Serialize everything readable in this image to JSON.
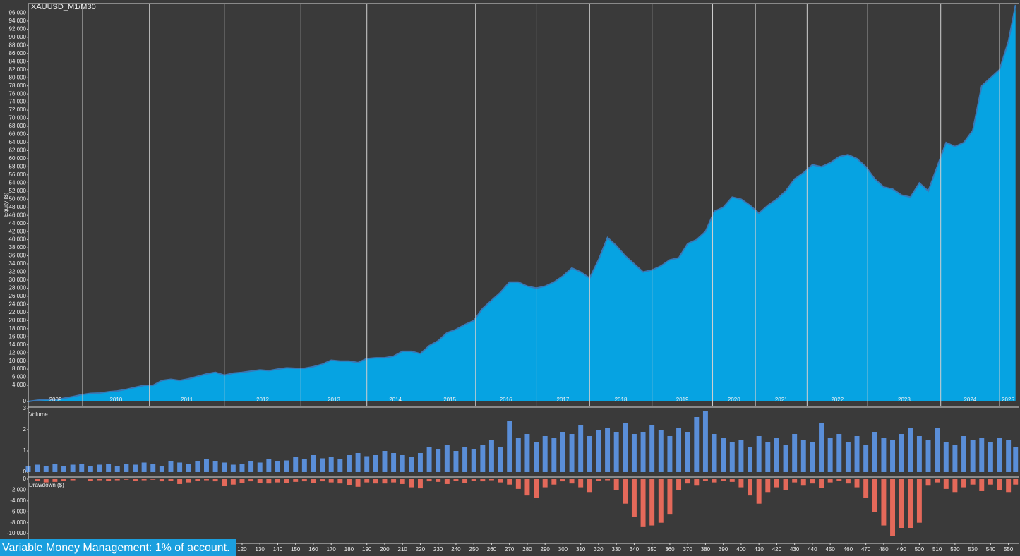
{
  "chart_data": [
    {
      "type": "area",
      "title": "XAUUSD_M1/M30",
      "ylabel": "Equity ($)",
      "color": "#06a3e2",
      "line_color": "#3a78b5",
      "x": [
        0,
        5,
        10,
        15,
        20,
        25,
        30,
        35,
        40,
        45,
        50,
        55,
        60,
        65,
        70,
        75,
        80,
        85,
        90,
        95,
        100,
        105,
        110,
        115,
        120,
        125,
        130,
        135,
        140,
        145,
        150,
        155,
        160,
        165,
        170,
        175,
        180,
        185,
        190,
        195,
        200,
        205,
        210,
        215,
        220,
        225,
        230,
        235,
        240,
        245,
        250,
        255,
        260,
        265,
        270,
        275,
        280,
        285,
        290,
        295,
        300,
        305,
        310,
        315,
        320,
        325,
        330,
        335,
        340,
        345,
        350,
        355,
        360,
        365,
        370,
        375,
        380,
        385,
        390,
        395,
        400,
        405,
        410,
        415,
        420,
        425,
        430,
        435,
        440,
        445,
        450,
        455,
        460,
        465,
        470,
        475,
        480,
        485,
        490,
        495,
        500,
        505,
        510,
        515,
        520,
        525,
        530,
        535,
        540,
        545,
        550,
        554
      ],
      "values": [
        0,
        300,
        500,
        400,
        800,
        1200,
        1700,
        2000,
        2100,
        2400,
        2600,
        3000,
        3500,
        4000,
        4000,
        5200,
        5500,
        5200,
        5600,
        6200,
        6800,
        7200,
        6500,
        7000,
        7200,
        7500,
        7800,
        7600,
        8000,
        8300,
        8200,
        8200,
        8600,
        9200,
        10200,
        10000,
        10000,
        9600,
        10600,
        10800,
        10800,
        11200,
        12400,
        12400,
        11800,
        13800,
        15000,
        17000,
        17800,
        19000,
        20000,
        23000,
        25000,
        27000,
        29500,
        29500,
        28500,
        28000,
        28500,
        29500,
        31000,
        33000,
        32000,
        30500,
        35000,
        40500,
        38500,
        36000,
        34000,
        32000,
        32500,
        33500,
        35000,
        35500,
        39000,
        40000,
        42000,
        47000,
        48000,
        50500,
        50000,
        48500,
        46500,
        48500,
        50000,
        52000,
        55000,
        56500,
        58500,
        58000,
        59000,
        60500,
        61000,
        60000,
        58000,
        55000,
        53000,
        52500,
        51000,
        50500,
        54000,
        52000,
        58000,
        64000,
        63000,
        64000,
        67000,
        78000,
        80000,
        82000,
        89000,
        98000
      ],
      "xlim": [
        0,
        554.5
      ],
      "ylim": [
        0,
        98000
      ],
      "yticks": [
        0,
        {
          "value": 4000,
          "label": "4,000"
        },
        {
          "value": 6000,
          "label": "6,000"
        },
        {
          "value": 8000,
          "label": "8,000"
        },
        {
          "value": 10000,
          "label": "10,000"
        },
        {
          "value": 12000,
          "label": "12,000"
        },
        {
          "value": 14000,
          "label": "14,000"
        },
        {
          "value": 16000,
          "label": "16,000"
        },
        {
          "value": 18000,
          "label": "18,000"
        },
        {
          "value": 20000,
          "label": "20,000"
        },
        {
          "value": 22000,
          "label": "22,000"
        },
        {
          "value": 24000,
          "label": "24,000"
        },
        {
          "value": 26000,
          "label": "26,000"
        },
        {
          "value": 28000,
          "label": "28,000"
        },
        {
          "value": 30000,
          "label": "30,000"
        },
        {
          "value": 32000,
          "label": "32,000"
        },
        {
          "value": 34000,
          "label": "34,000"
        },
        {
          "value": 36000,
          "label": "36,000"
        },
        {
          "value": 38000,
          "label": "38,000"
        },
        {
          "value": 40000,
          "label": "40,000"
        },
        {
          "value": 42000,
          "label": "42,000"
        },
        {
          "value": 44000,
          "label": "44,000"
        },
        {
          "value": 46000,
          "label": "46,000"
        },
        {
          "value": 48000,
          "label": "48,000"
        },
        {
          "value": 50000,
          "label": "50,000"
        },
        {
          "value": 52000,
          "label": "52,000"
        },
        {
          "value": 54000,
          "label": "54,000"
        },
        {
          "value": 56000,
          "label": "56,000"
        },
        {
          "value": 58000,
          "label": "58,000"
        },
        {
          "value": 60000,
          "label": "60,000"
        },
        {
          "value": 62000,
          "label": "62,000"
        },
        {
          "value": 64000,
          "label": "64,000"
        },
        {
          "value": 66000,
          "label": "66,000"
        },
        {
          "value": 68000,
          "label": "68,000"
        },
        {
          "value": 70000,
          "label": "70,000"
        },
        {
          "value": 72000,
          "label": "72,000"
        },
        {
          "value": 74000,
          "label": "74,000"
        },
        {
          "value": 76000,
          "label": "76,000"
        },
        {
          "value": 78000,
          "label": "78,000"
        },
        {
          "value": 80000,
          "label": "80,000"
        },
        {
          "value": 82000,
          "label": "82,000"
        },
        {
          "value": 84000,
          "label": "84,000"
        },
        {
          "value": 86000,
          "label": "86,000"
        },
        {
          "value": 88000,
          "label": "88,000"
        },
        {
          "value": 90000,
          "label": "90,000"
        },
        {
          "value": 92000,
          "label": "92,000"
        },
        {
          "value": 94000,
          "label": "94,000"
        },
        {
          "value": 96000,
          "label": "96,000"
        }
      ],
      "year_lines": [
        30.5,
        68,
        110,
        153,
        190,
        222,
        251,
        285,
        315,
        350,
        384,
        408,
        437,
        471,
        512,
        545
      ],
      "years": [
        "2009",
        "2010",
        "2011",
        "2012",
        "2013",
        "2014",
        "2015",
        "2016",
        "2017",
        "2018",
        "2019",
        "2020",
        "2021",
        "2022",
        "2023",
        "2024",
        "2025"
      ]
    },
    {
      "type": "bar",
      "ylabel": "Volume",
      "color": "#5a8ed8",
      "x": [
        0,
        5,
        10,
        15,
        20,
        25,
        30,
        35,
        40,
        45,
        50,
        55,
        60,
        65,
        70,
        75,
        80,
        85,
        90,
        95,
        100,
        105,
        110,
        115,
        120,
        125,
        130,
        135,
        140,
        145,
        150,
        155,
        160,
        165,
        170,
        175,
        180,
        185,
        190,
        195,
        200,
        205,
        210,
        215,
        220,
        225,
        230,
        235,
        240,
        245,
        250,
        255,
        260,
        265,
        270,
        275,
        280,
        285,
        290,
        295,
        300,
        305,
        310,
        315,
        320,
        325,
        330,
        335,
        340,
        345,
        350,
        355,
        360,
        365,
        370,
        375,
        380,
        385,
        390,
        395,
        400,
        405,
        410,
        415,
        420,
        425,
        430,
        435,
        440,
        445,
        450,
        455,
        460,
        465,
        470,
        475,
        480,
        485,
        490,
        495,
        500,
        505,
        510,
        515,
        520,
        525,
        530,
        535,
        540,
        545,
        550,
        554
      ],
      "values": [
        0.3,
        0.35,
        0.3,
        0.4,
        0.3,
        0.35,
        0.4,
        0.3,
        0.35,
        0.4,
        0.3,
        0.4,
        0.35,
        0.45,
        0.4,
        0.3,
        0.5,
        0.45,
        0.4,
        0.5,
        0.6,
        0.5,
        0.45,
        0.35,
        0.4,
        0.5,
        0.45,
        0.6,
        0.5,
        0.55,
        0.7,
        0.6,
        0.8,
        0.65,
        0.7,
        0.6,
        0.8,
        0.9,
        0.75,
        0.8,
        1.0,
        0.9,
        0.8,
        0.7,
        0.9,
        1.2,
        1.1,
        1.3,
        1.0,
        1.2,
        1.1,
        1.3,
        1.5,
        1.2,
        2.4,
        1.6,
        1.8,
        1.4,
        1.7,
        1.6,
        1.9,
        1.8,
        2.2,
        1.7,
        2.0,
        2.1,
        1.9,
        2.3,
        1.8,
        1.9,
        2.2,
        2.0,
        1.7,
        2.1,
        1.9,
        2.6,
        2.9,
        1.8,
        1.6,
        1.4,
        1.5,
        1.2,
        1.7,
        1.4,
        1.6,
        1.3,
        1.8,
        1.5,
        1.4,
        2.3,
        1.6,
        1.8,
        1.4,
        1.7,
        1.3,
        1.9,
        1.6,
        1.5,
        1.8,
        2.1,
        1.7,
        1.5,
        2.1,
        1.4,
        1.3,
        1.7,
        1.5,
        1.6,
        1.4,
        1.6,
        1.5,
        1.2
      ],
      "xlim": [
        0,
        554.5
      ],
      "ylim": [
        0,
        3
      ],
      "yticks": [
        0,
        1,
        2,
        3
      ]
    },
    {
      "type": "bar",
      "ylabel": "Drawdown ($)",
      "color": "#e4695a",
      "x": [
        0,
        5,
        10,
        15,
        20,
        25,
        30,
        35,
        40,
        45,
        50,
        55,
        60,
        65,
        70,
        75,
        80,
        85,
        90,
        95,
        100,
        105,
        110,
        115,
        120,
        125,
        130,
        135,
        140,
        145,
        150,
        155,
        160,
        165,
        170,
        175,
        180,
        185,
        190,
        195,
        200,
        205,
        210,
        215,
        220,
        225,
        230,
        235,
        240,
        245,
        250,
        255,
        260,
        265,
        270,
        275,
        280,
        285,
        290,
        295,
        300,
        305,
        310,
        315,
        320,
        325,
        330,
        335,
        340,
        345,
        350,
        355,
        360,
        365,
        370,
        375,
        380,
        385,
        390,
        395,
        400,
        405,
        410,
        415,
        420,
        425,
        430,
        435,
        440,
        445,
        450,
        455,
        460,
        465,
        470,
        475,
        480,
        485,
        490,
        495,
        500,
        505,
        510,
        515,
        520,
        525,
        530,
        535,
        540,
        545,
        550,
        554
      ],
      "values": [
        0,
        -300,
        -600,
        -500,
        -300,
        -200,
        0,
        -300,
        -200,
        -300,
        -200,
        -100,
        -300,
        -200,
        -100,
        -400,
        -300,
        -900,
        -600,
        -300,
        -200,
        -400,
        -1300,
        -1000,
        -700,
        -400,
        -700,
        -800,
        -600,
        -700,
        -500,
        -400,
        -700,
        -400,
        -600,
        -800,
        -1100,
        -1400,
        -600,
        -800,
        -800,
        -600,
        -900,
        -1500,
        -1700,
        -400,
        -500,
        -900,
        -300,
        -700,
        -300,
        -400,
        -200,
        -600,
        -1000,
        -1800,
        -3000,
        -3500,
        -1500,
        -1000,
        -400,
        -800,
        -1500,
        -2500,
        -300,
        -200,
        -2000,
        -4500,
        -7000,
        -8800,
        -8500,
        -8000,
        -6500,
        -2000,
        -800,
        -1200,
        -300,
        -600,
        -300,
        -500,
        -1500,
        -3000,
        -4500,
        -2500,
        -1500,
        -2000,
        -600,
        -1200,
        -800,
        -1600,
        -600,
        -300,
        -800,
        -1500,
        -3500,
        -6000,
        -8500,
        -10500,
        -9000,
        -9000,
        -8000,
        -1200,
        -600,
        -1800,
        -2500,
        -1500,
        -1000,
        -2200,
        -1000,
        -2000,
        -2500,
        -1000
      ],
      "xlim": [
        0,
        554.5
      ],
      "ylim": [
        -11800,
        0
      ],
      "yticks": [
        0,
        {
          "value": -2000,
          "label": "-2,000"
        },
        {
          "value": -4000,
          "label": "-4,000"
        },
        {
          "value": -6000,
          "label": "-6,000"
        },
        {
          "value": -8000,
          "label": "-8,000"
        },
        {
          "value": -10000,
          "label": "-10,000"
        }
      ],
      "xticks": [
        120,
        130,
        140,
        150,
        160,
        170,
        180,
        190,
        200,
        210,
        220,
        230,
        240,
        250,
        260,
        270,
        280,
        290,
        300,
        310,
        320,
        330,
        340,
        350,
        360,
        370,
        380,
        390,
        400,
        410,
        420,
        430,
        440,
        450,
        460,
        470,
        480,
        490,
        500,
        510,
        520,
        530,
        540,
        550
      ]
    }
  ],
  "footer": {
    "text": "Variable Money Management: 1% of account."
  }
}
